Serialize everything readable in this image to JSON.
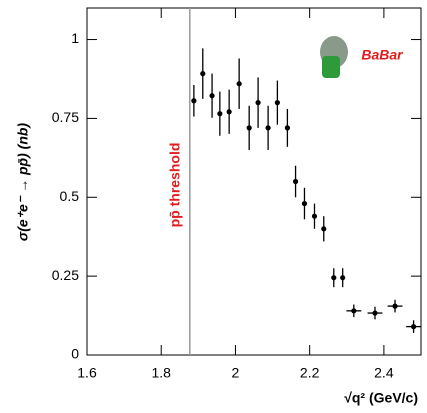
{
  "chart_data": {
    "type": "errorbar",
    "x_label": "√q² (GeV/c)",
    "y_label": "σ(e⁺e⁻ → pp̄) (nb)",
    "annotation": "pp̄ threshold",
    "threshold_x": 1.877,
    "logo": "BaBar",
    "x": [
      1.888,
      1.912,
      1.937,
      1.958,
      1.983,
      2.01,
      2.037,
      2.061,
      2.088,
      2.113,
      2.14,
      2.162,
      2.186,
      2.213,
      2.238,
      2.265,
      2.289,
      2.319,
      2.376,
      2.43,
      2.48
    ],
    "x_errors": [
      0,
      0,
      0,
      0,
      0,
      0,
      0,
      0,
      0,
      0,
      0,
      0,
      0,
      0,
      0,
      0,
      0,
      0.02,
      0.02,
      0.02,
      0.02
    ],
    "series": [
      {
        "color": "#000000",
        "values": [
          0.806,
          0.892,
          0.822,
          0.765,
          0.771,
          0.86,
          0.72,
          0.8,
          0.72,
          0.8,
          0.72,
          0.55,
          0.48,
          0.44,
          0.4,
          0.245,
          0.245,
          0.14,
          0.133,
          0.155,
          0.09
        ],
        "y_errors": [
          0.05,
          0.08,
          0.07,
          0.07,
          0.07,
          0.08,
          0.07,
          0.08,
          0.07,
          0.07,
          0.06,
          0.05,
          0.05,
          0.04,
          0.04,
          0.03,
          0.03,
          0.02,
          0.02,
          0.02,
          0.02
        ]
      }
    ],
    "xlim": [
      1.6,
      2.5
    ],
    "xticks": [
      1.6,
      1.8,
      2,
      2.2,
      2.4
    ],
    "ylim": [
      0,
      1.1
    ],
    "yticks": [
      0,
      0.25,
      0.5,
      0.75,
      1
    ],
    "grid": false
  }
}
